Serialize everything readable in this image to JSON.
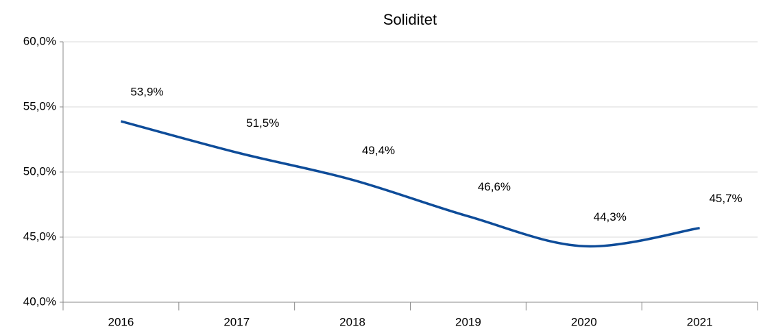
{
  "chart_data": {
    "type": "line",
    "title": "Soliditet",
    "categories": [
      "2016",
      "2017",
      "2018",
      "2019",
      "2020",
      "2021"
    ],
    "series": [
      {
        "name": "Soliditet",
        "color": "#0e4c99",
        "values": [
          53.9,
          51.5,
          49.4,
          46.6,
          44.3,
          45.7
        ],
        "value_labels": [
          "53,9%",
          "51,5%",
          "49,4%",
          "46,6%",
          "44,3%",
          "45,7%"
        ]
      }
    ],
    "ylim": [
      40,
      60
    ],
    "yticks": [
      {
        "value": 40,
        "label": "40,0%"
      },
      {
        "value": 45,
        "label": "45,0%"
      },
      {
        "value": 50,
        "label": "50,0%"
      },
      {
        "value": 55,
        "label": "55,0%"
      },
      {
        "value": 60,
        "label": "60,0%"
      }
    ],
    "grid": true,
    "smooth": true
  }
}
